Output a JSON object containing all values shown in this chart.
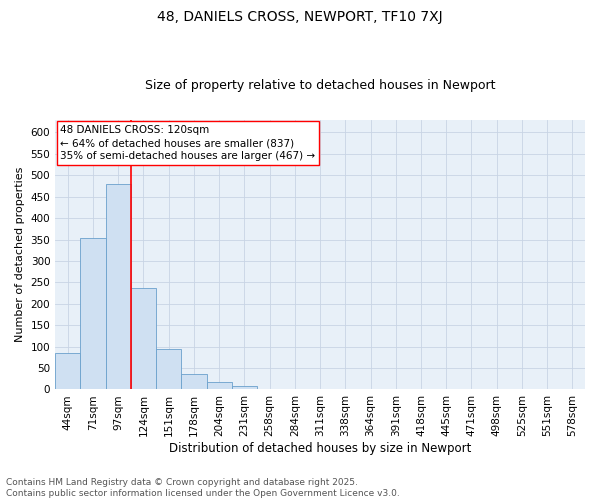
{
  "title1": "48, DANIELS CROSS, NEWPORT, TF10 7XJ",
  "title2": "Size of property relative to detached houses in Newport",
  "xlabel": "Distribution of detached houses by size in Newport",
  "ylabel": "Number of detached properties",
  "categories": [
    "44sqm",
    "71sqm",
    "97sqm",
    "124sqm",
    "151sqm",
    "178sqm",
    "204sqm",
    "231sqm",
    "258sqm",
    "284sqm",
    "311sqm",
    "338sqm",
    "364sqm",
    "391sqm",
    "418sqm",
    "445sqm",
    "471sqm",
    "498sqm",
    "525sqm",
    "551sqm",
    "578sqm"
  ],
  "values": [
    85,
    353,
    480,
    237,
    95,
    37,
    17,
    7,
    2,
    1,
    1,
    0,
    1,
    0,
    0,
    0,
    0,
    0,
    1,
    0,
    1
  ],
  "bar_color": "#cfe0f2",
  "bar_edge_color": "#6aa0cc",
  "vline_color": "red",
  "annotation_text": "48 DANIELS CROSS: 120sqm\n← 64% of detached houses are smaller (837)\n35% of semi-detached houses are larger (467) →",
  "annotation_box_color": "white",
  "annotation_box_edge_color": "red",
  "ylim": [
    0,
    630
  ],
  "yticks": [
    0,
    50,
    100,
    150,
    200,
    250,
    300,
    350,
    400,
    450,
    500,
    550,
    600
  ],
  "background_color": "#e8f0f8",
  "grid_color": "#c8d4e4",
  "footer": "Contains HM Land Registry data © Crown copyright and database right 2025.\nContains public sector information licensed under the Open Government Licence v3.0.",
  "title1_fontsize": 10,
  "title2_fontsize": 9,
  "xlabel_fontsize": 8.5,
  "ylabel_fontsize": 8,
  "tick_fontsize": 7.5,
  "annotation_fontsize": 7.5,
  "footer_fontsize": 6.5
}
